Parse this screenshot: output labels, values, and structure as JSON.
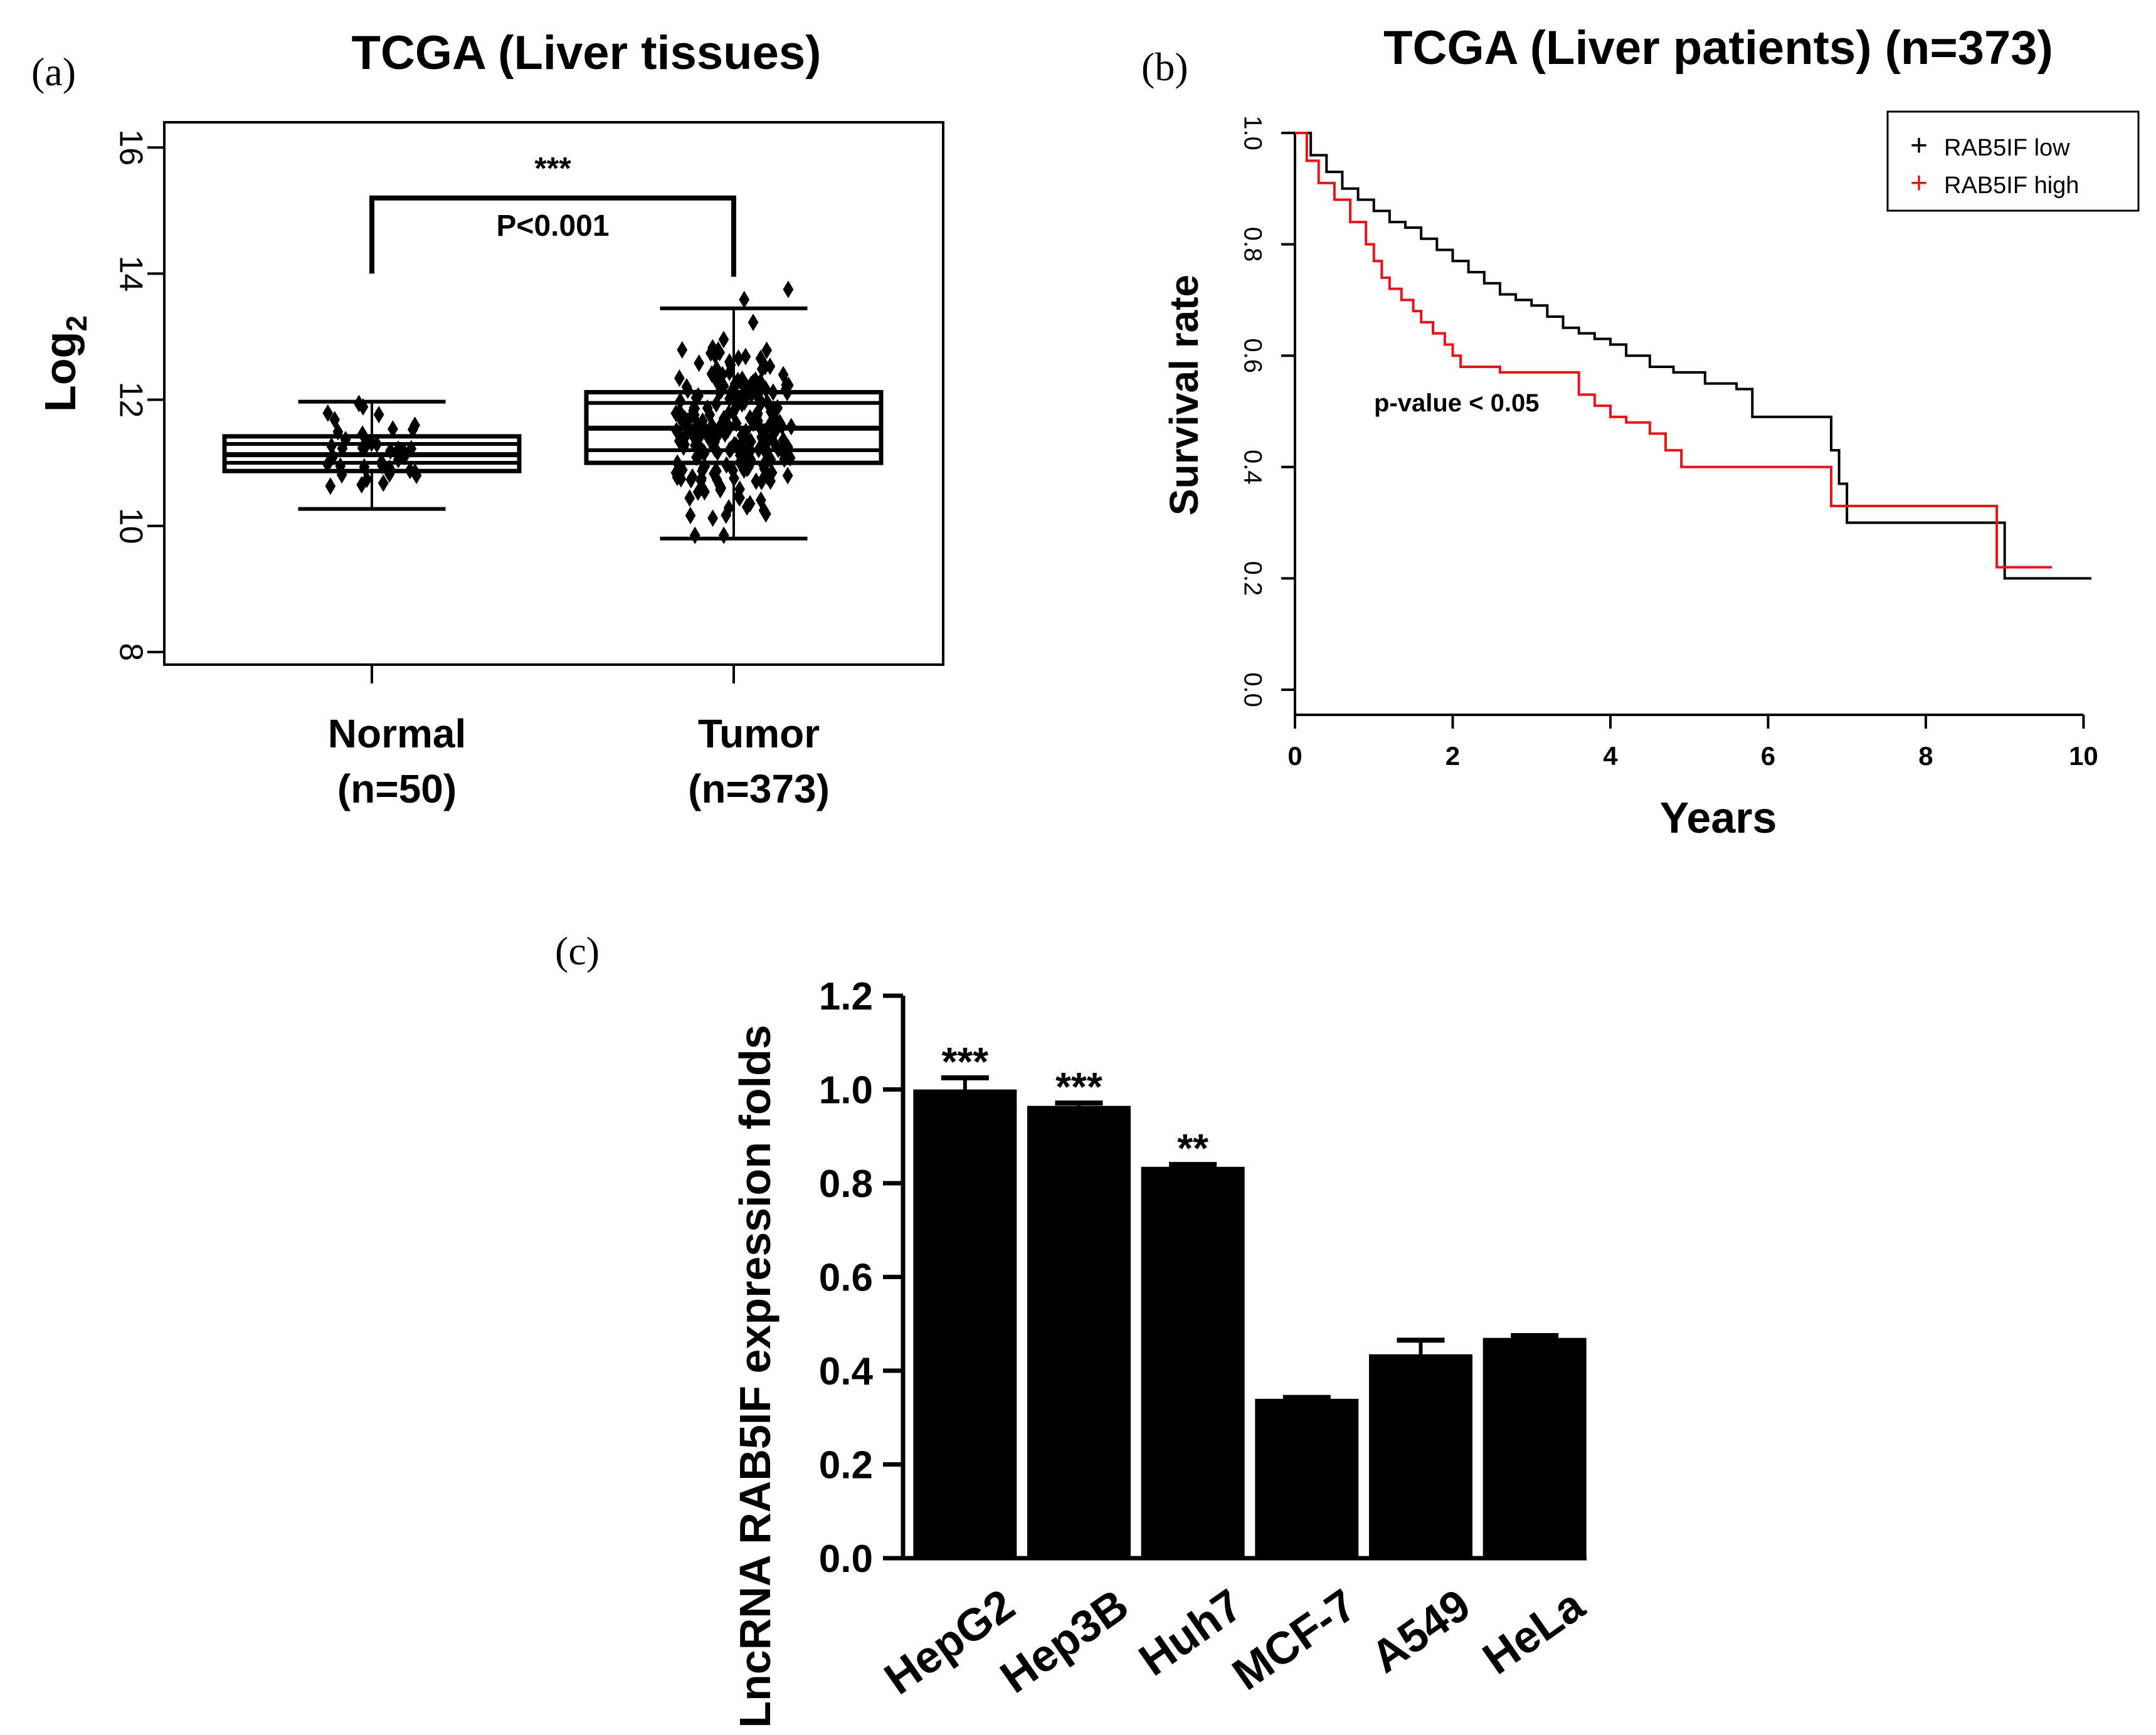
{
  "panel_labels": {
    "a": "(a)",
    "b": "(b)",
    "c": "(c)"
  },
  "colors": {
    "low": "#000000",
    "high": "#e8141c",
    "ink": "#000000"
  },
  "chart_data": [
    {
      "type": "box",
      "title": "TCGA (Liver tissues)",
      "ylabel": "Log",
      "ylabel_sub": "2",
      "ylim": [
        7.8,
        16.4
      ],
      "yticks": [
        8,
        10,
        12,
        14,
        16
      ],
      "ytick_labels": [
        "8",
        "10",
        "12",
        "14",
        "16"
      ],
      "categories": [
        {
          "name": "Normal",
          "n_label": "(n=50)",
          "whisker_low": 10.27,
          "q1": 10.87,
          "median": 11.13,
          "q3": 11.42,
          "whisker_high": 11.97,
          "upper_line": 11.3,
          "lower_line": 11.0
        },
        {
          "name": "Tumor",
          "n_label": "(n=373)",
          "whisker_low": 9.8,
          "q1": 11.0,
          "median": 11.55,
          "q3": 12.12,
          "whisker_high": 13.45,
          "upper_line": 11.95,
          "lower_line": 11.2
        }
      ],
      "significance": {
        "stars": "***",
        "text": "P<0.001",
        "bracket_y": 15.2,
        "stars_y": 15.6,
        "text_y": 14.7
      }
    },
    {
      "type": "line",
      "title": "TCGA (Liver patients) (n=373)",
      "xlabel": "Years",
      "ylabel": "Survival rate",
      "xlim": [
        0,
        10.1
      ],
      "ylim": [
        0,
        1.0
      ],
      "xticks": [
        0,
        2,
        4,
        6,
        8,
        10
      ],
      "xtick_labels": [
        "0",
        "2",
        "4",
        "6",
        "8",
        "10"
      ],
      "yticks": [
        0.0,
        0.2,
        0.4,
        0.6,
        0.8,
        1.0
      ],
      "ytick_labels": [
        "0.0",
        "0.2",
        "0.4",
        "0.6",
        "0.8",
        "1.0"
      ],
      "annotation": "p-value < 0.05",
      "annotation_x": 2.05,
      "annotation_y": 0.5,
      "legend_position": "top-right",
      "series": [
        {
          "name": "RAB5IF low",
          "color": "#000000",
          "marker": "+",
          "x": [
            0,
            0.2,
            0.4,
            0.6,
            0.8,
            1.0,
            1.2,
            1.4,
            1.6,
            1.8,
            2.0,
            2.2,
            2.4,
            2.6,
            2.8,
            3.0,
            3.2,
            3.4,
            3.6,
            3.8,
            4.0,
            4.2,
            4.5,
            4.8,
            5.2,
            5.6,
            5.8,
            6.2,
            6.6,
            6.8,
            6.9,
            7.0,
            7.6,
            8.0,
            8.6,
            8.9,
            9.0,
            9.6,
            10.1
          ],
          "y": [
            1.0,
            0.96,
            0.93,
            0.9,
            0.88,
            0.86,
            0.84,
            0.83,
            0.81,
            0.79,
            0.77,
            0.75,
            0.73,
            0.71,
            0.7,
            0.69,
            0.67,
            0.65,
            0.64,
            0.63,
            0.62,
            0.6,
            0.58,
            0.57,
            0.55,
            0.54,
            0.49,
            0.49,
            0.49,
            0.43,
            0.37,
            0.3,
            0.3,
            0.3,
            0.3,
            0.3,
            0.2,
            0.2,
            0.2
          ]
        },
        {
          "name": "RAB5IF high",
          "color": "#e8141c",
          "marker": "+",
          "x": [
            0,
            0.15,
            0.3,
            0.5,
            0.7,
            0.9,
            1.0,
            1.1,
            1.2,
            1.35,
            1.5,
            1.6,
            1.75,
            1.9,
            2.0,
            2.1,
            2.3,
            2.6,
            3.0,
            3.4,
            3.6,
            3.8,
            4.0,
            4.2,
            4.5,
            4.7,
            4.9,
            5.5,
            6.0,
            6.5,
            6.8,
            7.2,
            7.8,
            8.6,
            8.9,
            9.2,
            9.6
          ],
          "y": [
            1.0,
            0.95,
            0.91,
            0.88,
            0.84,
            0.8,
            0.77,
            0.74,
            0.72,
            0.7,
            0.68,
            0.66,
            0.64,
            0.62,
            0.6,
            0.58,
            0.58,
            0.57,
            0.57,
            0.57,
            0.53,
            0.51,
            0.49,
            0.48,
            0.46,
            0.43,
            0.4,
            0.4,
            0.4,
            0.4,
            0.33,
            0.33,
            0.33,
            0.33,
            0.22,
            0.22,
            0.22
          ]
        }
      ]
    },
    {
      "type": "bar",
      "ylabel": "LncRNA RAB5IF expression folds",
      "ylim": [
        0,
        1.2
      ],
      "yticks": [
        0.0,
        0.2,
        0.4,
        0.6,
        0.8,
        1.0,
        1.2
      ],
      "ytick_labels": [
        "0.0",
        "0.2",
        "0.4",
        "0.6",
        "0.8",
        "1.0",
        "1.2"
      ],
      "categories": [
        "HepG2",
        "Hep3B",
        "Huh7",
        "MCF-7",
        "A549",
        "HeLa"
      ],
      "values": [
        1.0,
        0.965,
        0.835,
        0.34,
        0.435,
        0.47
      ],
      "errors": [
        0.025,
        0.006,
        0.005,
        0.003,
        0.03,
        0.005
      ],
      "significance": [
        "***",
        "***",
        "**",
        "",
        "",
        ""
      ]
    }
  ]
}
